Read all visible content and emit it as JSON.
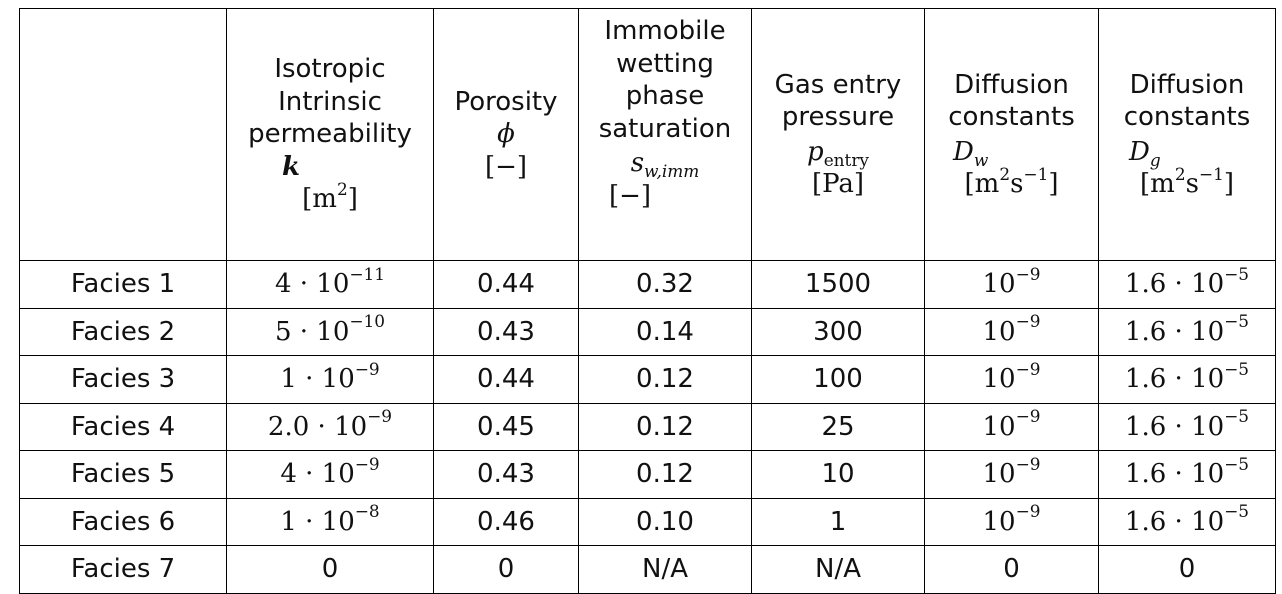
{
  "columns": [
    {
      "lines": [
        "Isotropic",
        "Intrinsic",
        "permeability"
      ],
      "symbol": "k",
      "unit_base": "[m",
      "unit_exp": "2",
      "unit_end": "]"
    },
    {
      "lines": [
        "Porosity"
      ],
      "symbol": "ϕ",
      "unit": "[−]"
    },
    {
      "lines": [
        "Immobile",
        "wetting",
        "phase",
        "saturation"
      ],
      "symbol": "s",
      "symbol_sub": "w,imm",
      "unit": "[−]"
    },
    {
      "lines": [
        "Gas entry",
        "pressure"
      ],
      "symbol": "p",
      "symbol_sub": "entry",
      "unit": "[Pa]"
    },
    {
      "lines": [
        "Diffusion",
        "constants"
      ],
      "symbol": "D",
      "symbol_sub": "w",
      "unit_base": "[m",
      "unit_exp": "2",
      "unit_mid": "s",
      "unit_exp2": "−1",
      "unit_end": "]"
    },
    {
      "lines": [
        "Diffusion",
        "constants"
      ],
      "symbol": "D",
      "symbol_sub": "g",
      "unit_base": "[m",
      "unit_exp": "2",
      "unit_mid": "s",
      "unit_exp2": "−1",
      "unit_end": "]"
    }
  ],
  "rows": [
    {
      "label": "Facies 1",
      "k_base": "4 · 10",
      "k_exp": "−11",
      "porosity": "0.44",
      "sw_imm": "0.32",
      "p_entry": "1500",
      "dw_base": "10",
      "dw_exp": "−9",
      "dg_base": "1.6 · 10",
      "dg_exp": "−5"
    },
    {
      "label": "Facies 2",
      "k_base": "5 · 10",
      "k_exp": "−10",
      "porosity": "0.43",
      "sw_imm": "0.14",
      "p_entry": "300",
      "dw_base": "10",
      "dw_exp": "−9",
      "dg_base": "1.6 · 10",
      "dg_exp": "−5"
    },
    {
      "label": "Facies 3",
      "k_base": "1 · 10",
      "k_exp": "−9",
      "porosity": "0.44",
      "sw_imm": "0.12",
      "p_entry": "100",
      "dw_base": "10",
      "dw_exp": "−9",
      "dg_base": "1.6 · 10",
      "dg_exp": "−5"
    },
    {
      "label": "Facies 4",
      "k_base": "2.0 · 10",
      "k_exp": "−9",
      "porosity": "0.45",
      "sw_imm": "0.12",
      "p_entry": "25",
      "dw_base": "10",
      "dw_exp": "−9",
      "dg_base": "1.6 · 10",
      "dg_exp": "−5"
    },
    {
      "label": "Facies 5",
      "k_base": "4 · 10",
      "k_exp": "−9",
      "porosity": "0.43",
      "sw_imm": "0.12",
      "p_entry": "10",
      "dw_base": "10",
      "dw_exp": "−9",
      "dg_base": "1.6 · 10",
      "dg_exp": "−5"
    },
    {
      "label": "Facies 6",
      "k_base": "1 · 10",
      "k_exp": "−8",
      "porosity": "0.46",
      "sw_imm": "0.10",
      "p_entry": "1",
      "dw_base": "10",
      "dw_exp": "−9",
      "dg_base": "1.6 · 10",
      "dg_exp": "−5"
    },
    {
      "label": "Facies 7",
      "k_base": "0",
      "k_exp": "",
      "porosity": "0",
      "sw_imm": "N/A",
      "p_entry": "N/A",
      "dw_base": "0",
      "dw_exp": "",
      "dg_base": "0",
      "dg_exp": ""
    }
  ]
}
